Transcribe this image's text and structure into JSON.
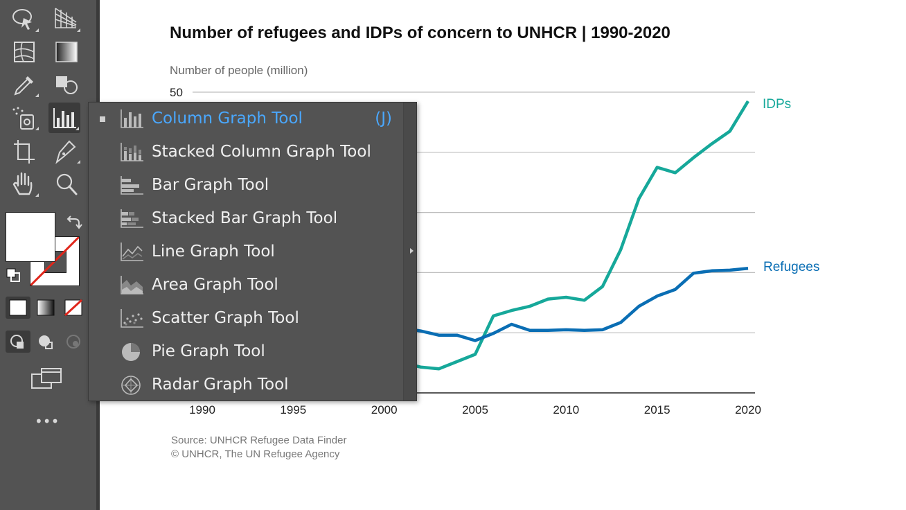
{
  "chart_data": {
    "type": "line",
    "title": "Number of refugees and IDPs of concern to UNHCR | 1990-2020",
    "ylabel": "Number of people (million)",
    "xlabel": "",
    "ylim": [
      0,
      50
    ],
    "xlim": [
      1990,
      2020
    ],
    "y_ticks_visible": [
      "50"
    ],
    "x_ticks": [
      "1990",
      "1995",
      "2000",
      "2005",
      "2010",
      "2015",
      "2020"
    ],
    "grid": true,
    "series": [
      {
        "name": "IDPs",
        "color": "#16a89a",
        "x": [
          2001,
          2002,
          2003,
          2004,
          2005,
          2006,
          2007,
          2008,
          2009,
          2010,
          2011,
          2012,
          2013,
          2014,
          2015,
          2016,
          2017,
          2018,
          2019,
          2020
        ],
        "values": [
          5.0,
          4.3,
          4.0,
          5.2,
          6.4,
          12.8,
          13.7,
          14.4,
          15.6,
          15.9,
          15.4,
          17.7,
          23.8,
          32.3,
          37.5,
          36.6,
          39.1,
          41.4,
          43.5,
          48.5
        ]
      },
      {
        "name": "Refugees",
        "color": "#0a6eb4",
        "x": [
          2001,
          2002,
          2003,
          2004,
          2005,
          2006,
          2007,
          2008,
          2009,
          2010,
          2011,
          2012,
          2013,
          2014,
          2015,
          2016,
          2017,
          2018,
          2019,
          2020
        ],
        "values": [
          10.8,
          10.3,
          9.6,
          9.6,
          8.7,
          9.9,
          11.4,
          10.4,
          10.4,
          10.5,
          10.4,
          10.5,
          11.7,
          14.4,
          16.1,
          17.2,
          19.9,
          20.3,
          20.4,
          20.7
        ]
      }
    ],
    "source_lines": [
      "Source: UNHCR Refugee Data Finder",
      "© UNHCR, The UN Refugee Agency"
    ]
  },
  "flyout_menu": {
    "items": [
      {
        "label": "Column Graph Tool",
        "shortcut": "(J)",
        "icon": "column-graph-icon",
        "active": true
      },
      {
        "label": "Stacked Column Graph Tool",
        "icon": "stacked-column-graph-icon"
      },
      {
        "label": "Bar Graph Tool",
        "icon": "bar-graph-icon"
      },
      {
        "label": "Stacked Bar Graph Tool",
        "icon": "stacked-bar-graph-icon"
      },
      {
        "label": "Line Graph Tool",
        "icon": "line-graph-icon"
      },
      {
        "label": "Area Graph Tool",
        "icon": "area-graph-icon"
      },
      {
        "label": "Scatter Graph Tool",
        "icon": "scatter-graph-icon"
      },
      {
        "label": "Pie Graph Tool",
        "icon": "pie-graph-icon"
      },
      {
        "label": "Radar Graph Tool",
        "icon": "radar-graph-icon"
      }
    ]
  },
  "toolbar": {
    "tools": [
      "symbol-sprayer-icon",
      "perspective-grid-icon",
      "mesh-icon",
      "gradient-icon",
      "eyedropper-icon",
      "shape-builder-icon",
      "symbol-sprayer-alt-icon",
      "column-graph-icon",
      "artboard-icon",
      "pen-icon",
      "hand-icon",
      "zoom-icon"
    ],
    "more_label": "•••",
    "colors": {
      "fill": "#ffffff",
      "stroke_none": "#e0261b"
    }
  }
}
